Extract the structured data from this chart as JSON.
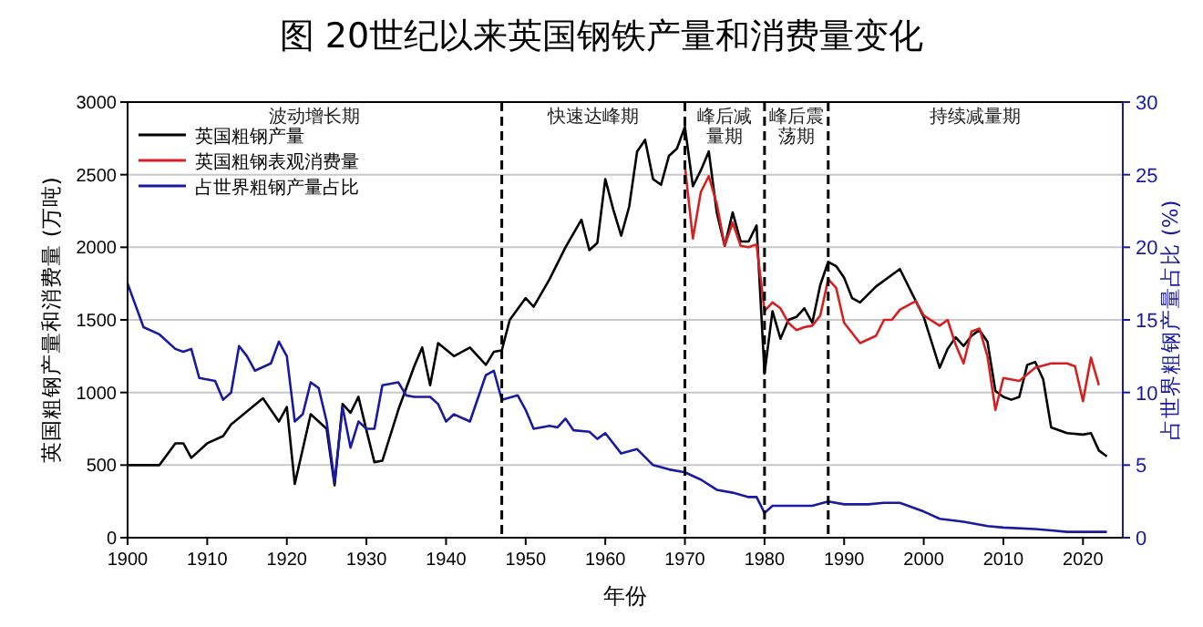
{
  "chart_data": {
    "type": "line",
    "title": "图 20世纪以来英国钢铁产量和消费量变化",
    "xlabel": "年份",
    "ylabel": "英国粗钢产量和消费量 (万吨)",
    "y2label": "占世界粗钢产量占比 (%)",
    "xlim": [
      1900,
      2025
    ],
    "xticks": [
      1900,
      1910,
      1920,
      1930,
      1940,
      1950,
      1960,
      1970,
      1980,
      1990,
      2000,
      2010,
      2020
    ],
    "ylim": [
      0,
      3000
    ],
    "yticks": [
      0,
      500,
      1000,
      1500,
      2000,
      2500,
      3000
    ],
    "y2lim": [
      0,
      30
    ],
    "y2ticks": [
      0,
      5,
      10,
      15,
      20,
      25,
      30
    ],
    "grid": "y",
    "legend": "top left",
    "line_style": "solid",
    "marker": "none",
    "ref_lines": [
      {
        "axis": "x",
        "value": 1947,
        "line_style": "dashed",
        "color": "#000000"
      },
      {
        "axis": "x",
        "value": 1970,
        "line_style": "dashed",
        "color": "#000000"
      },
      {
        "axis": "x",
        "value": 1980,
        "line_style": "dashed",
        "color": "#000000"
      },
      {
        "axis": "x",
        "value": 1988,
        "line_style": "dashed",
        "color": "#000000"
      }
    ],
    "annotations": [
      "波动增长期",
      "快速达峰期",
      "峰后减量期",
      "峰后震荡期",
      "持续减量期"
    ],
    "series": [
      {
        "name": "英国粗钢产量",
        "color": "#000000",
        "x": [
          1900,
          1904,
          1906,
          1907,
          1908,
          1910,
          1912,
          1913,
          1917,
          1919,
          1920,
          1921,
          1923,
          1925,
          1926,
          1927,
          1928,
          1929,
          1930,
          1931,
          1932,
          1934,
          1936,
          1937,
          1938,
          1939,
          1941,
          1943,
          1945,
          1946,
          1947,
          1948,
          1950,
          1951,
          1953,
          1955,
          1957,
          1958,
          1959,
          1960,
          1961,
          1962,
          1963,
          1964,
          1965,
          1966,
          1967,
          1968,
          1969,
          1970,
          1971,
          1972,
          1973,
          1974,
          1975,
          1976,
          1977,
          1978,
          1979,
          1980,
          1981,
          1982,
          1983,
          1984,
          1985,
          1986,
          1987,
          1988,
          1989,
          1990,
          1991,
          1992,
          1994,
          1997,
          2000,
          2002,
          2003,
          2004,
          2005,
          2006,
          2007,
          2008,
          2009,
          2010,
          2011,
          2012,
          2013,
          2014,
          2015,
          2016,
          2018,
          2020,
          2021,
          2022,
          2023
        ],
        "values": [
          500,
          500,
          650,
          650,
          550,
          650,
          700,
          780,
          960,
          800,
          900,
          370,
          850,
          750,
          360,
          920,
          860,
          970,
          740,
          520,
          530,
          880,
          1180,
          1310,
          1050,
          1340,
          1250,
          1310,
          1190,
          1280,
          1290,
          1500,
          1650,
          1590,
          1780,
          2000,
          2190,
          1980,
          2030,
          2470,
          2260,
          2080,
          2280,
          2660,
          2740,
          2470,
          2430,
          2630,
          2680,
          2830,
          2420,
          2530,
          2660,
          2240,
          2010,
          2240,
          2040,
          2040,
          2150,
          1130,
          1560,
          1370,
          1500,
          1520,
          1580,
          1480,
          1740,
          1900,
          1870,
          1790,
          1650,
          1620,
          1730,
          1850,
          1520,
          1170,
          1300,
          1380,
          1320,
          1390,
          1430,
          1350,
          1010,
          970,
          950,
          970,
          1190,
          1210,
          1090,
          760,
          720,
          710,
          720,
          600,
          560
        ]
      },
      {
        "name": "英国粗钢表观消费量",
        "color": "#d42020",
        "x": [
          1970,
          1971,
          1972,
          1973,
          1974,
          1975,
          1976,
          1977,
          1978,
          1979,
          1980,
          1981,
          1982,
          1983,
          1984,
          1985,
          1986,
          1987,
          1988,
          1989,
          1990,
          1992,
          1994,
          1995,
          1996,
          1997,
          1999,
          2000,
          2002,
          2003,
          2004,
          2005,
          2006,
          2007,
          2008,
          2009,
          2010,
          2012,
          2014,
          2016,
          2018,
          2019,
          2020,
          2021,
          2022
        ],
        "values": [
          2560,
          2060,
          2380,
          2490,
          2300,
          2010,
          2170,
          2010,
          2000,
          2020,
          1560,
          1620,
          1580,
          1480,
          1430,
          1450,
          1460,
          1530,
          1780,
          1720,
          1480,
          1340,
          1390,
          1500,
          1500,
          1570,
          1630,
          1530,
          1460,
          1500,
          1330,
          1200,
          1420,
          1440,
          1250,
          880,
          1100,
          1080,
          1170,
          1200,
          1200,
          1180,
          940,
          1240,
          1050
        ]
      },
      {
        "name": "占世界粗钢产量占比",
        "color": "#1a1aa0",
        "axis": "y2",
        "x": [
          1900,
          1902,
          1904,
          1906,
          1907,
          1908,
          1909,
          1911,
          1912,
          1913,
          1914,
          1915,
          1916,
          1918,
          1919,
          1920,
          1921,
          1922,
          1923,
          1924,
          1925,
          1926,
          1927,
          1928,
          1929,
          1930,
          1931,
          1932,
          1934,
          1935,
          1936,
          1938,
          1939,
          1940,
          1941,
          1943,
          1945,
          1946,
          1947,
          1949,
          1950,
          1951,
          1953,
          1954,
          1955,
          1956,
          1958,
          1959,
          1960,
          1962,
          1964,
          1966,
          1968,
          1970,
          1972,
          1974,
          1976,
          1978,
          1979,
          1980,
          1981,
          1983,
          1986,
          1988,
          1990,
          1993,
          1995,
          1997,
          2000,
          2002,
          2005,
          2008,
          2010,
          2014,
          2016,
          2018,
          2023
        ],
        "values": [
          17.5,
          14.5,
          14,
          13,
          12.8,
          13,
          11,
          10.8,
          9.5,
          10,
          13.2,
          12.5,
          11.5,
          12,
          13.5,
          12.5,
          8,
          8.5,
          10.7,
          10.3,
          8,
          3.8,
          9,
          6.2,
          8,
          7.5,
          7.5,
          10.5,
          10.7,
          9.8,
          9.7,
          9.7,
          9.2,
          8,
          8.5,
          8,
          11.2,
          11.5,
          9.5,
          9.8,
          8.8,
          7.5,
          7.7,
          7.6,
          8.2,
          7.4,
          7.3,
          6.8,
          7.2,
          5.8,
          6.1,
          5,
          4.7,
          4.5,
          4,
          3.3,
          3.1,
          2.8,
          2.8,
          1.7,
          2.2,
          2.2,
          2.2,
          2.5,
          2.3,
          2.3,
          2.4,
          2.4,
          1.8,
          1.3,
          1.1,
          0.8,
          0.7,
          0.6,
          0.5,
          0.4,
          0.4
        ]
      }
    ]
  }
}
